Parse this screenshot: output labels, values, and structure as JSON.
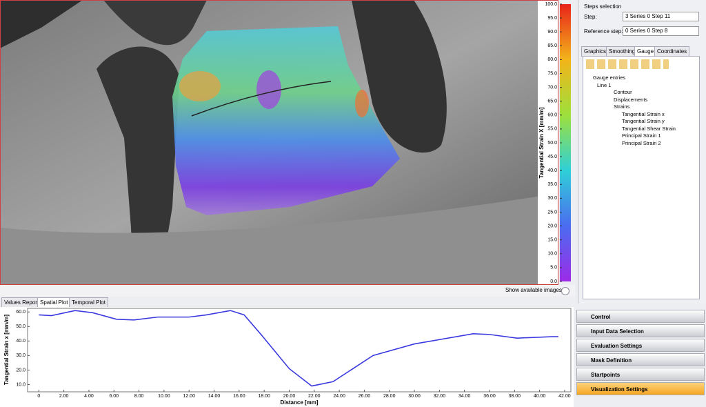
{
  "image_view": {
    "colorbar": {
      "label": "Tangential Strain X [mm/m]",
      "range": [
        0,
        100
      ],
      "ticks": [
        {
          "value": 100,
          "label": "100.0"
        },
        {
          "value": 95,
          "label": "95.0"
        },
        {
          "value": 90,
          "label": "90.0"
        },
        {
          "value": 85,
          "label": "85.0"
        },
        {
          "value": 80,
          "label": "80.0"
        },
        {
          "value": 75,
          "label": "75.0"
        },
        {
          "value": 70,
          "label": "70.0"
        },
        {
          "value": 65,
          "label": "65.0"
        },
        {
          "value": 60,
          "label": "60.0"
        },
        {
          "value": 55,
          "label": "55.0"
        },
        {
          "value": 50,
          "label": "50.0"
        },
        {
          "value": 45,
          "label": "45.0"
        },
        {
          "value": 40,
          "label": "40.0"
        },
        {
          "value": 35,
          "label": "35.0"
        },
        {
          "value": 30,
          "label": "30.0"
        },
        {
          "value": 25,
          "label": "25.0"
        },
        {
          "value": 20,
          "label": "20.0"
        },
        {
          "value": 15,
          "label": "15.0"
        },
        {
          "value": 10,
          "label": "10.0"
        },
        {
          "value": 5,
          "label": "5.0"
        },
        {
          "value": 0,
          "label": "0.0"
        }
      ]
    },
    "show_images": "Show available images:"
  },
  "plot_tabs": [
    "Values Report",
    "Spatial Plot",
    "Temporal Plot"
  ],
  "chart_data": {
    "type": "line",
    "xlabel": "Distance [mm]",
    "ylabel": "Tangential Strain x [mm/m]",
    "color": "#3a3ae0",
    "x": [
      0,
      1,
      2.9,
      4.3,
      6.2,
      7.6,
      9.5,
      12,
      13.4,
      15.3,
      16.4,
      17.8,
      20,
      21.8,
      23.5,
      26.7,
      30,
      34.7,
      36,
      38.2,
      41,
      41.5
    ],
    "values": [
      58,
      57.5,
      61,
      59.5,
      55,
      54.5,
      56.5,
      56.5,
      58,
      61,
      58,
      44,
      21,
      9,
      12,
      30,
      38,
      45,
      44.5,
      42,
      43,
      43
    ],
    "xlim": [
      -0.9,
      42.5
    ],
    "ylim": [
      5,
      62.5
    ],
    "xticks": [
      0,
      {
        "value": 2,
        "label": "2.00"
      },
      {
        "value": 4,
        "label": "4.00"
      },
      {
        "value": 6,
        "label": "6.00"
      },
      {
        "value": 8,
        "label": "8.00"
      },
      {
        "value": 10,
        "label": "10.00"
      },
      {
        "value": 12,
        "label": "12.00"
      },
      {
        "value": 14,
        "label": "14.00"
      },
      {
        "value": 16,
        "label": "16.00"
      },
      {
        "value": 18,
        "label": "18.00"
      },
      {
        "value": 20,
        "label": "20.00"
      },
      {
        "value": 22,
        "label": "22.00"
      },
      {
        "value": 24,
        "label": "24.00"
      },
      {
        "value": 26,
        "label": "26.00"
      },
      {
        "value": 28,
        "label": "28.00"
      },
      {
        "value": 30,
        "label": "30.00"
      },
      {
        "value": 32,
        "label": "32.00"
      },
      {
        "value": 34,
        "label": "34.00"
      },
      {
        "value": 36,
        "label": "36.00"
      },
      {
        "value": 38,
        "label": "38.00"
      },
      {
        "value": 40,
        "label": "40.00"
      },
      {
        "value": 42,
        "label": "42.00"
      }
    ],
    "yticks": [
      {
        "value": 10,
        "label": "10.0"
      },
      {
        "value": 20,
        "label": "20.0"
      },
      {
        "value": 30,
        "label": "30.0"
      },
      {
        "value": 40,
        "label": "40.0"
      },
      {
        "value": 50,
        "label": "50.0"
      },
      {
        "value": 60,
        "label": "60.0"
      }
    ]
  },
  "steps": {
    "title": "Steps selection",
    "step_label": "Step:",
    "step_value": "3 Series 0  Step 11",
    "ref_label": "Reference step:",
    "ref_value": "0 Series 0  Step 8"
  },
  "panel_tabs": [
    "Graphics",
    "Smoothing",
    "Gauge",
    "Coordinates"
  ],
  "tree": [
    "Gauge entries",
    "Line 1",
    "Contour",
    "Displacements",
    "Strains",
    "Tangential Strain x",
    "Tangential Strain y",
    "Tangential Shear Strain",
    "Principal Strain 1",
    "Principal Strain 2"
  ],
  "workflow": [
    "Control",
    "Input Data Selection",
    "Evaluation Settings",
    "Mask Definition",
    "Startpoints",
    "Visualization Settings"
  ]
}
